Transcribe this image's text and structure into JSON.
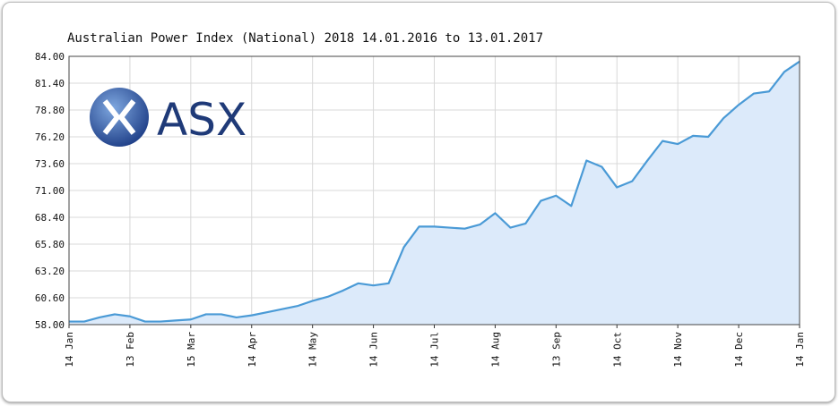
{
  "logo": "ASX",
  "chart_data": {
    "type": "area",
    "title": "Australian Power Index (National) 2018 14.01.2016 to 13.01.2017",
    "categories": [
      "14 Jan",
      null,
      null,
      null,
      "13 Feb",
      null,
      null,
      null,
      "15 Mar",
      null,
      null,
      null,
      "14 Apr",
      null,
      null,
      null,
      "14 May",
      null,
      null,
      null,
      "14 Jun",
      null,
      null,
      null,
      "14 Jul",
      null,
      null,
      null,
      "14 Aug",
      null,
      null,
      null,
      "13 Sep",
      null,
      null,
      null,
      "14 Oct",
      null,
      null,
      null,
      "14 Nov",
      null,
      null,
      null,
      "14 Dec",
      null,
      null,
      null,
      "14 Jan"
    ],
    "series": [
      {
        "color": "#4a9ad6",
        "fill": "#dceafa",
        "values": [
          58.3,
          58.3,
          58.7,
          59.0,
          58.8,
          58.3,
          58.3,
          58.4,
          58.5,
          59.0,
          59.0,
          58.7,
          58.9,
          59.2,
          59.5,
          59.8,
          60.3,
          60.7,
          61.3,
          62.0,
          61.8,
          62.0,
          65.5,
          67.5,
          67.5,
          67.4,
          67.3,
          67.7,
          68.8,
          67.4,
          67.8,
          70.0,
          70.5,
          69.5,
          73.9,
          73.3,
          71.3,
          71.9,
          73.9,
          75.8,
          75.5,
          76.3,
          76.2,
          78.0,
          79.3,
          80.4,
          80.6,
          82.5,
          83.5
        ]
      }
    ],
    "ylim": [
      58,
      84
    ],
    "yticks": [
      {
        "value": 58,
        "label": "58.00"
      },
      {
        "value": 60.6,
        "label": "60.60"
      },
      {
        "value": 63.2,
        "label": "63.20"
      },
      {
        "value": 65.8,
        "label": "65.80"
      },
      {
        "value": 68.4,
        "label": "68.40"
      },
      {
        "value": 71,
        "label": "71.00"
      },
      {
        "value": 73.6,
        "label": "73.60"
      },
      {
        "value": 76.2,
        "label": "76.20"
      },
      {
        "value": 78.8,
        "label": "78.80"
      },
      {
        "value": 81.4,
        "label": "81.40"
      },
      {
        "value": 84,
        "label": "84.00"
      }
    ],
    "grid": true
  }
}
